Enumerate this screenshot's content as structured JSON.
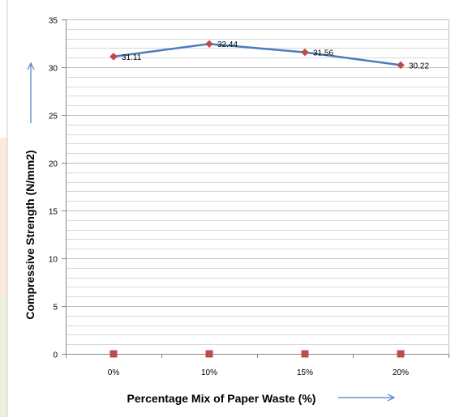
{
  "chart_data": {
    "type": "line",
    "title": "",
    "xlabel": "Percentage Mix of Paper Waste (%)",
    "ylabel": "Compressive Strength (N/mm2)",
    "categories": [
      "0%",
      "10%",
      "15%",
      "20%"
    ],
    "ylim": [
      0,
      35
    ],
    "yticks": [
      0,
      5,
      10,
      15,
      20,
      25,
      30,
      35
    ],
    "grid": true,
    "legend": "none",
    "series": [
      {
        "values": [
          31.11,
          32.44,
          31.56,
          30.22
        ],
        "data_labels": [
          "31.11",
          "32.44",
          "31.56",
          "30.22"
        ],
        "color": "#4a7ebb",
        "marker_color": "#be4b48",
        "marker": "diamond"
      },
      {
        "values": [
          0,
          0,
          0,
          0
        ],
        "marker_color": "#be4b48",
        "marker": "square"
      }
    ],
    "colors": {
      "arrow": "#4a7ebb",
      "gridline": "#bfbfbf",
      "axis": "#868686",
      "left_strip_peach": "#fde9d9",
      "left_strip_green": "#ebf1de"
    }
  }
}
